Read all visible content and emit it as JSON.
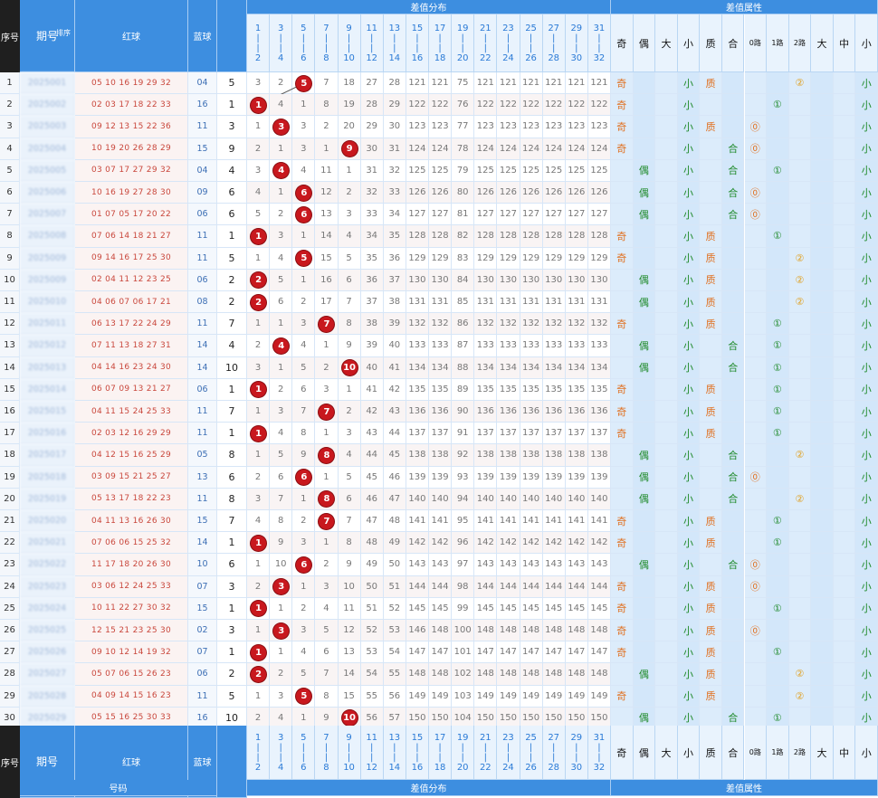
{
  "header": {
    "seq_label": "序号",
    "period_label": "期号",
    "period_sub": "排序",
    "red_label": "红球",
    "blue_label": "蓝球",
    "dist_title": "差值分布",
    "attr_title": "差值属性",
    "dist_cols": [
      [
        "1",
        "2"
      ],
      [
        "3",
        "4"
      ],
      [
        "5",
        "6"
      ],
      [
        "7",
        "8"
      ],
      [
        "9",
        "10"
      ],
      [
        "11",
        "12"
      ],
      [
        "13",
        "14"
      ],
      [
        "15",
        "16"
      ],
      [
        "17",
        "18"
      ],
      [
        "19",
        "20"
      ],
      [
        "21",
        "22"
      ],
      [
        "23",
        "24"
      ],
      [
        "25",
        "26"
      ],
      [
        "27",
        "28"
      ],
      [
        "29",
        "30"
      ],
      [
        "31",
        "32"
      ]
    ],
    "attr_cols": [
      "奇",
      "偶",
      "大",
      "小",
      "质",
      "合",
      "0路",
      "1路",
      "2路",
      "大",
      "中",
      "小"
    ]
  },
  "footer": {
    "seq_label": "序号",
    "period_label": "期号",
    "red_label": "红球",
    "blue_label": "蓝球",
    "number_label": "号码",
    "dist_title": "差值分布",
    "attr_title": "差值属性"
  },
  "rows": [
    {
      "seq": "1",
      "period": "2025001",
      "red": "05 10 16 19 29 32",
      "blue": "04",
      "span": 5,
      "cols": [
        3,
        2,
        5,
        7,
        18,
        27,
        28,
        121,
        121,
        75,
        121,
        121,
        121,
        121,
        121,
        121
      ],
      "attrs": [
        "奇",
        "",
        "",
        "小",
        "质",
        "",
        "",
        "",
        "2",
        "",
        "",
        "小"
      ]
    },
    {
      "seq": "2",
      "period": "2025002",
      "red": "02 03 17 18 22 33",
      "blue": "16",
      "span": 1,
      "cols": [
        1,
        4,
        1,
        8,
        19,
        28,
        29,
        122,
        122,
        76,
        122,
        122,
        122,
        122,
        122,
        122
      ],
      "attrs": [
        "奇",
        "",
        "",
        "小",
        "",
        "",
        "",
        "1",
        "",
        "",
        "",
        "小"
      ]
    },
    {
      "seq": "3",
      "period": "2025003",
      "red": "09 12 13 15 22 36",
      "blue": "11",
      "span": 3,
      "cols": [
        1,
        1,
        3,
        2,
        20,
        29,
        30,
        123,
        123,
        77,
        123,
        123,
        123,
        123,
        123,
        123
      ],
      "attrs": [
        "奇",
        "",
        "",
        "小",
        "质",
        "",
        "0",
        "",
        "",
        "",
        "",
        "小"
      ]
    },
    {
      "seq": "4",
      "period": "2025004",
      "red": "10 19 20 26 28 29",
      "blue": "15",
      "span": 9,
      "cols": [
        2,
        1,
        3,
        1,
        9,
        30,
        31,
        124,
        124,
        78,
        124,
        124,
        124,
        124,
        124,
        124
      ],
      "attrs": [
        "奇",
        "",
        "",
        "小",
        "",
        "合",
        "0",
        "",
        "",
        "",
        "",
        "小"
      ]
    },
    {
      "seq": "5",
      "period": "2025005",
      "red": "03 07 17 27 29 32",
      "blue": "04",
      "span": 4,
      "cols": [
        3,
        4,
        4,
        11,
        1,
        31,
        32,
        125,
        125,
        79,
        125,
        125,
        125,
        125,
        125,
        125
      ],
      "attrs": [
        "",
        "偶",
        "",
        "小",
        "",
        "合",
        "",
        "1",
        "",
        "",
        "",
        "小"
      ]
    },
    {
      "seq": "6",
      "period": "2025006",
      "red": "10 16 19 27 28 30",
      "blue": "09",
      "span": 6,
      "cols": [
        4,
        1,
        6,
        12,
        2,
        32,
        33,
        126,
        126,
        80,
        126,
        126,
        126,
        126,
        126,
        126
      ],
      "attrs": [
        "",
        "偶",
        "",
        "小",
        "",
        "合",
        "0",
        "",
        "",
        "",
        "",
        "小"
      ]
    },
    {
      "seq": "7",
      "period": "2025007",
      "red": "01 07 05 17 20 22",
      "blue": "06",
      "span": 6,
      "cols": [
        5,
        2,
        6,
        13,
        3,
        33,
        34,
        127,
        127,
        81,
        127,
        127,
        127,
        127,
        127,
        127
      ],
      "attrs": [
        "",
        "偶",
        "",
        "小",
        "",
        "合",
        "0",
        "",
        "",
        "",
        "",
        "小"
      ]
    },
    {
      "seq": "8",
      "period": "2025008",
      "red": "07 06 14 18 21 27",
      "blue": "11",
      "span": 1,
      "cols": [
        1,
        3,
        1,
        14,
        4,
        34,
        35,
        128,
        128,
        82,
        128,
        128,
        128,
        128,
        128,
        128
      ],
      "attrs": [
        "奇",
        "",
        "",
        "小",
        "质",
        "",
        "",
        "1",
        "",
        "",
        "",
        "小"
      ]
    },
    {
      "seq": "9",
      "period": "2025009",
      "red": "09 14 16 17 25 30",
      "blue": "11",
      "span": 5,
      "cols": [
        1,
        4,
        5,
        15,
        5,
        35,
        36,
        129,
        129,
        83,
        129,
        129,
        129,
        129,
        129,
        129
      ],
      "attrs": [
        "奇",
        "",
        "",
        "小",
        "质",
        "",
        "",
        "",
        "2",
        "",
        "",
        "小"
      ]
    },
    {
      "seq": "10",
      "period": "2025009",
      "red": "02 04 11 12 23 25",
      "blue": "06",
      "span": 2,
      "cols": [
        2,
        5,
        1,
        16,
        6,
        36,
        37,
        130,
        130,
        84,
        130,
        130,
        130,
        130,
        130,
        130
      ],
      "attrs": [
        "",
        "偶",
        "",
        "小",
        "质",
        "",
        "",
        "",
        "2",
        "",
        "",
        "小"
      ]
    },
    {
      "seq": "11",
      "period": "2025010",
      "red": "04 06 07 06 17 21",
      "blue": "08",
      "span": 2,
      "cols": [
        2,
        6,
        2,
        17,
        7,
        37,
        38,
        131,
        131,
        85,
        131,
        131,
        131,
        131,
        131,
        131
      ],
      "attrs": [
        "",
        "偶",
        "",
        "小",
        "质",
        "",
        "",
        "",
        "2",
        "",
        "",
        "小"
      ]
    },
    {
      "seq": "12",
      "period": "2025011",
      "red": "06 13 17 22 24 29",
      "blue": "11",
      "span": 7,
      "cols": [
        1,
        1,
        3,
        7,
        8,
        38,
        39,
        132,
        132,
        86,
        132,
        132,
        132,
        132,
        132,
        132
      ],
      "attrs": [
        "奇",
        "",
        "",
        "小",
        "质",
        "",
        "",
        "1",
        "",
        "",
        "",
        "小"
      ]
    },
    {
      "seq": "13",
      "period": "2025012",
      "red": "07 11 13 18 27 31",
      "blue": "14",
      "span": 4,
      "cols": [
        2,
        4,
        4,
        1,
        9,
        39,
        40,
        133,
        133,
        87,
        133,
        133,
        133,
        133,
        133,
        133
      ],
      "attrs": [
        "",
        "偶",
        "",
        "小",
        "",
        "合",
        "",
        "1",
        "",
        "",
        "",
        "小"
      ]
    },
    {
      "seq": "14",
      "period": "2025013",
      "red": "04 14 16 23 24 30",
      "blue": "14",
      "span": 10,
      "cols": [
        3,
        1,
        5,
        2,
        10,
        40,
        41,
        134,
        134,
        88,
        134,
        134,
        134,
        134,
        134,
        134
      ],
      "attrs": [
        "",
        "偶",
        "",
        "小",
        "",
        "合",
        "",
        "1",
        "",
        "",
        "",
        "小"
      ]
    },
    {
      "seq": "15",
      "period": "2025014",
      "red": "06 07 09 13 21 27",
      "blue": "06",
      "span": 1,
      "cols": [
        1,
        2,
        6,
        3,
        1,
        41,
        42,
        135,
        135,
        89,
        135,
        135,
        135,
        135,
        135,
        135
      ],
      "attrs": [
        "奇",
        "",
        "",
        "小",
        "质",
        "",
        "",
        "1",
        "",
        "",
        "",
        "小"
      ]
    },
    {
      "seq": "16",
      "period": "2025015",
      "red": "04 11 15 24 25 33",
      "blue": "11",
      "span": 7,
      "cols": [
        1,
        3,
        7,
        7,
        2,
        42,
        43,
        136,
        136,
        90,
        136,
        136,
        136,
        136,
        136,
        136
      ],
      "attrs": [
        "奇",
        "",
        "",
        "小",
        "质",
        "",
        "",
        "1",
        "",
        "",
        "",
        "小"
      ]
    },
    {
      "seq": "17",
      "period": "2025016",
      "red": "02 03 12 16 29 29",
      "blue": "11",
      "span": 1,
      "cols": [
        1,
        4,
        8,
        1,
        3,
        43,
        44,
        137,
        137,
        91,
        137,
        137,
        137,
        137,
        137,
        137
      ],
      "attrs": [
        "奇",
        "",
        "",
        "小",
        "质",
        "",
        "",
        "1",
        "",
        "",
        "",
        "小"
      ]
    },
    {
      "seq": "18",
      "period": "2025017",
      "red": "04 12 15 16 25 29",
      "blue": "05",
      "span": 8,
      "cols": [
        1,
        5,
        9,
        8,
        4,
        44,
        45,
        138,
        138,
        92,
        138,
        138,
        138,
        138,
        138,
        138
      ],
      "attrs": [
        "",
        "偶",
        "",
        "小",
        "",
        "合",
        "",
        "",
        "2",
        "",
        "",
        "小"
      ]
    },
    {
      "seq": "19",
      "period": "2025018",
      "red": "03 09 15 21 25 27",
      "blue": "13",
      "span": 6,
      "cols": [
        2,
        6,
        6,
        1,
        5,
        45,
        46,
        139,
        139,
        93,
        139,
        139,
        139,
        139,
        139,
        139
      ],
      "attrs": [
        "",
        "偶",
        "",
        "小",
        "",
        "合",
        "0",
        "",
        "",
        "",
        "",
        "小"
      ]
    },
    {
      "seq": "20",
      "period": "2025019",
      "red": "05 13 17 18 22 23",
      "blue": "11",
      "span": 8,
      "cols": [
        3,
        7,
        1,
        8,
        6,
        46,
        47,
        140,
        140,
        94,
        140,
        140,
        140,
        140,
        140,
        140
      ],
      "attrs": [
        "",
        "偶",
        "",
        "小",
        "",
        "合",
        "",
        "",
        "2",
        "",
        "",
        "小"
      ]
    },
    {
      "seq": "21",
      "period": "2025020",
      "red": "04 11 13 16 26 30",
      "blue": "15",
      "span": 7,
      "cols": [
        4,
        8,
        2,
        7,
        7,
        47,
        48,
        141,
        141,
        95,
        141,
        141,
        141,
        141,
        141,
        141
      ],
      "attrs": [
        "奇",
        "",
        "",
        "小",
        "质",
        "",
        "",
        "1",
        "",
        "",
        "",
        "小"
      ]
    },
    {
      "seq": "22",
      "period": "2025021",
      "red": "07 06 06 15 25 32",
      "blue": "14",
      "span": 1,
      "cols": [
        1,
        9,
        3,
        1,
        8,
        48,
        49,
        142,
        142,
        96,
        142,
        142,
        142,
        142,
        142,
        142
      ],
      "attrs": [
        "奇",
        "",
        "",
        "小",
        "质",
        "",
        "",
        "1",
        "",
        "",
        "",
        "小"
      ]
    },
    {
      "seq": "23",
      "period": "2025022",
      "red": "11 17 18 20 26 30",
      "blue": "10",
      "span": 6,
      "cols": [
        1,
        10,
        6,
        2,
        9,
        49,
        50,
        143,
        143,
        97,
        143,
        143,
        143,
        143,
        143,
        143
      ],
      "attrs": [
        "",
        "偶",
        "",
        "小",
        "",
        "合",
        "0",
        "",
        "",
        "",
        "",
        "小"
      ]
    },
    {
      "seq": "24",
      "period": "2025023",
      "red": "03 06 12 24 25 33",
      "blue": "07",
      "span": 3,
      "cols": [
        2,
        3,
        1,
        3,
        10,
        50,
        51,
        144,
        144,
        98,
        144,
        144,
        144,
        144,
        144,
        144
      ],
      "attrs": [
        "奇",
        "",
        "",
        "小",
        "质",
        "",
        "0",
        "",
        "",
        "",
        "",
        "小"
      ]
    },
    {
      "seq": "25",
      "period": "2025024",
      "red": "10 11 22 27 30 32",
      "blue": "15",
      "span": 1,
      "cols": [
        1,
        1,
        2,
        4,
        11,
        51,
        52,
        145,
        145,
        99,
        145,
        145,
        145,
        145,
        145,
        145
      ],
      "attrs": [
        "奇",
        "",
        "",
        "小",
        "质",
        "",
        "",
        "1",
        "",
        "",
        "",
        "小"
      ]
    },
    {
      "seq": "26",
      "period": "2025025",
      "red": "12 15 21 23 25 30",
      "blue": "02",
      "span": 3,
      "cols": [
        1,
        3,
        3,
        5,
        12,
        52,
        53,
        146,
        148,
        100,
        148,
        148,
        148,
        148,
        148,
        148
      ],
      "attrs": [
        "奇",
        "",
        "",
        "小",
        "质",
        "",
        "0",
        "",
        "",
        "",
        "",
        "小"
      ]
    },
    {
      "seq": "27",
      "period": "2025026",
      "red": "09 10 12 14 19 32",
      "blue": "07",
      "span": 1,
      "cols": [
        1,
        1,
        4,
        6,
        13,
        53,
        54,
        147,
        147,
        101,
        147,
        147,
        147,
        147,
        147,
        147
      ],
      "attrs": [
        "奇",
        "",
        "",
        "小",
        "质",
        "",
        "",
        "1",
        "",
        "",
        "",
        "小"
      ]
    },
    {
      "seq": "28",
      "period": "2025027",
      "red": "05 07 06 15 26 23",
      "blue": "06",
      "span": 2,
      "cols": [
        2,
        2,
        5,
        7,
        14,
        54,
        55,
        148,
        148,
        102,
        148,
        148,
        148,
        148,
        148,
        148
      ],
      "attrs": [
        "",
        "偶",
        "",
        "小",
        "质",
        "",
        "",
        "",
        "2",
        "",
        "",
        "小"
      ]
    },
    {
      "seq": "29",
      "period": "2025028",
      "red": "04 09 14 15 16 23",
      "blue": "11",
      "span": 5,
      "cols": [
        1,
        3,
        5,
        8,
        15,
        55,
        56,
        149,
        149,
        103,
        149,
        149,
        149,
        149,
        149,
        149
      ],
      "attrs": [
        "奇",
        "",
        "",
        "小",
        "质",
        "",
        "",
        "",
        "2",
        "",
        "",
        "小"
      ]
    },
    {
      "seq": "30",
      "period": "2025029",
      "red": "05 15 16 25 30 33",
      "blue": "16",
      "span": 10,
      "cols": [
        2,
        4,
        1,
        9,
        10,
        56,
        57,
        150,
        150,
        104,
        150,
        150,
        150,
        150,
        150,
        150
      ],
      "attrs": [
        "",
        "偶",
        "",
        "小",
        "",
        "合",
        "",
        "1",
        "",
        "",
        "",
        "小"
      ]
    }
  ]
}
